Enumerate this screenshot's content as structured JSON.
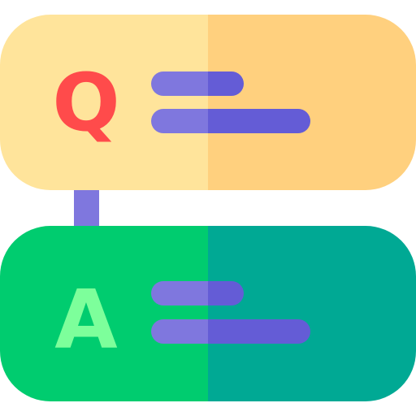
{
  "icon": {
    "name": "question-answer-icon",
    "question": {
      "letter": "Q"
    },
    "answer": {
      "letter": "A"
    },
    "colors": {
      "question_panel_left": "#FFE49B",
      "question_panel_right": "#FFD07E",
      "question_letter": "#FF4B4B",
      "answer_panel_left": "#00CC6F",
      "answer_panel_right": "#00A994",
      "answer_letter": "#7DFF9B",
      "line_left": "#7F77DE",
      "line_right": "#645CD6",
      "connector": "#7F77DE"
    }
  }
}
